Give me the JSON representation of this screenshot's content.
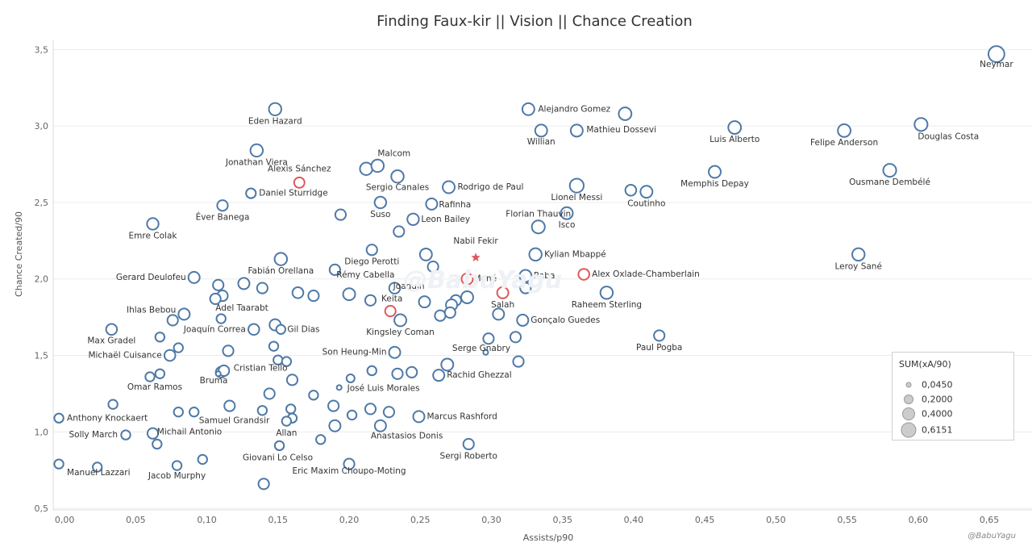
{
  "chart_data": {
    "type": "scatter",
    "title": "Finding Faux-kir || Vision || Chance Creation",
    "xlabel": "Assists/p90",
    "ylabel": "Chance Created/90",
    "xlim": [
      -0.008,
      0.68
    ],
    "ylim": [
      0.49,
      3.56
    ],
    "x_ticks": [
      "0,00",
      "0,05",
      "0,10",
      "0,15",
      "0,20",
      "0,25",
      "0,30",
      "0,35",
      "0,40",
      "0,45",
      "0,50",
      "0,55",
      "0,60",
      "0,65"
    ],
    "y_ticks": [
      "0,5",
      "1,0",
      "1,5",
      "2,0",
      "2,5",
      "3,0",
      "3,5"
    ],
    "grid": true,
    "legend": {
      "title": "SUM(xA/90)",
      "placement": "bottom-right",
      "entries": [
        "0,0450",
        "0,2000",
        "0,4000",
        "0,6151"
      ]
    },
    "colors": {
      "default": "#4e79a7",
      "highlight": "#e15759"
    },
    "points": [
      {
        "x": 0.655,
        "y": 3.47,
        "xa": 0.6,
        "label": "Neymar"
      },
      {
        "x": 0.148,
        "y": 3.11,
        "xa": 0.28,
        "label": "Eden Hazard"
      },
      {
        "x": 0.326,
        "y": 3.11,
        "xa": 0.25,
        "label": "Alejandro Gomez"
      },
      {
        "x": 0.394,
        "y": 3.08,
        "xa": 0.3,
        "label": ""
      },
      {
        "x": 0.335,
        "y": 2.97,
        "xa": 0.25,
        "label": "Willian"
      },
      {
        "x": 0.36,
        "y": 2.97,
        "xa": 0.25,
        "label": "Mathieu Dossevi"
      },
      {
        "x": 0.471,
        "y": 2.99,
        "xa": 0.3,
        "label": "Luis Alberto"
      },
      {
        "x": 0.548,
        "y": 2.97,
        "xa": 0.3,
        "label": "Felipe Anderson"
      },
      {
        "x": 0.602,
        "y": 3.01,
        "xa": 0.32,
        "label": "Douglas Costa"
      },
      {
        "x": 0.135,
        "y": 2.84,
        "xa": 0.28,
        "label": "Jonathan Viera"
      },
      {
        "x": 0.212,
        "y": 2.72,
        "xa": 0.28,
        "label": ""
      },
      {
        "x": 0.22,
        "y": 2.74,
        "xa": 0.28,
        "label": "Malcom"
      },
      {
        "x": 0.165,
        "y": 2.63,
        "xa": 0.15,
        "label": "Alexis Sánchez",
        "highlight": true
      },
      {
        "x": 0.234,
        "y": 2.67,
        "xa": 0.28,
        "label": "Sergio Canales"
      },
      {
        "x": 0.27,
        "y": 2.6,
        "xa": 0.25,
        "label": "Rodrigo de Paul"
      },
      {
        "x": 0.36,
        "y": 2.61,
        "xa": 0.4,
        "label": "Lionel Messi"
      },
      {
        "x": 0.398,
        "y": 2.58,
        "xa": 0.18,
        "label": ""
      },
      {
        "x": 0.409,
        "y": 2.57,
        "xa": 0.25,
        "label": "Coutinho"
      },
      {
        "x": 0.457,
        "y": 2.7,
        "xa": 0.25,
        "label": "Memphis Depay"
      },
      {
        "x": 0.58,
        "y": 2.71,
        "xa": 0.32,
        "label": "Ousmane Dembélé"
      },
      {
        "x": 0.131,
        "y": 2.56,
        "xa": 0.12,
        "label": "Daniel Sturridge"
      },
      {
        "x": 0.111,
        "y": 2.48,
        "xa": 0.16,
        "label": "Éver Banega"
      },
      {
        "x": 0.222,
        "y": 2.5,
        "xa": 0.22,
        "label": "Suso"
      },
      {
        "x": 0.258,
        "y": 2.49,
        "xa": 0.2,
        "label": "Rafinha"
      },
      {
        "x": 0.194,
        "y": 2.42,
        "xa": 0.16,
        "label": ""
      },
      {
        "x": 0.245,
        "y": 2.39,
        "xa": 0.22,
        "label": "Leon Bailey"
      },
      {
        "x": 0.353,
        "y": 2.43,
        "xa": 0.25,
        "label": "Isco"
      },
      {
        "x": 0.235,
        "y": 2.31,
        "xa": 0.16,
        "label": ""
      },
      {
        "x": 0.062,
        "y": 2.36,
        "xa": 0.22,
        "label": "Emre Colak"
      },
      {
        "x": 0.333,
        "y": 2.34,
        "xa": 0.32,
        "label": "Florian Thauvin"
      },
      {
        "x": 0.558,
        "y": 2.16,
        "xa": 0.28,
        "label": "Leroy Sané"
      },
      {
        "x": 0.289,
        "y": 2.14,
        "xa": 0.0,
        "label": "Nabil Fekir",
        "highlight": true,
        "marker": "star"
      },
      {
        "x": 0.152,
        "y": 2.13,
        "xa": 0.28,
        "label": "Fabián Orellana"
      },
      {
        "x": 0.216,
        "y": 2.19,
        "xa": 0.16,
        "label": "Diego Perotti"
      },
      {
        "x": 0.254,
        "y": 2.16,
        "xa": 0.25,
        "label": ""
      },
      {
        "x": 0.331,
        "y": 2.16,
        "xa": 0.28,
        "label": "Kylian Mbappé"
      },
      {
        "x": 0.259,
        "y": 2.08,
        "xa": 0.16,
        "label": ""
      },
      {
        "x": 0.19,
        "y": 2.06,
        "xa": 0.16,
        "label": ""
      },
      {
        "x": 0.365,
        "y": 2.03,
        "xa": 0.18,
        "label": "Alex Oxlade-Chamberlain",
        "highlight": true
      },
      {
        "x": 0.091,
        "y": 2.01,
        "xa": 0.2,
        "label": "Gerard Deulofeu"
      },
      {
        "x": 0.283,
        "y": 2.0,
        "xa": 0.2,
        "label": "Mané",
        "highlight": true
      },
      {
        "x": 0.324,
        "y": 2.02,
        "xa": 0.25,
        "label": "Raba"
      },
      {
        "x": 0.126,
        "y": 1.97,
        "xa": 0.2,
        "label": ""
      },
      {
        "x": 0.108,
        "y": 1.96,
        "xa": 0.16,
        "label": ""
      },
      {
        "x": 0.139,
        "y": 1.94,
        "xa": 0.16,
        "label": ""
      },
      {
        "x": 0.324,
        "y": 1.94,
        "xa": 0.16,
        "label": ""
      },
      {
        "x": 0.232,
        "y": 1.94,
        "xa": 0.18,
        "label": "Rémy Cabella"
      },
      {
        "x": 0.164,
        "y": 1.91,
        "xa": 0.18,
        "label": ""
      },
      {
        "x": 0.175,
        "y": 1.89,
        "xa": 0.16,
        "label": ""
      },
      {
        "x": 0.2,
        "y": 1.9,
        "xa": 0.25,
        "label": ""
      },
      {
        "x": 0.308,
        "y": 1.91,
        "xa": 0.2,
        "label": "Salah",
        "highlight": true
      },
      {
        "x": 0.381,
        "y": 1.91,
        "xa": 0.28,
        "label": "Raheem Sterling"
      },
      {
        "x": 0.111,
        "y": 1.89,
        "xa": 0.16,
        "label": ""
      },
      {
        "x": 0.106,
        "y": 1.87,
        "xa": 0.16,
        "label": ""
      },
      {
        "x": 0.215,
        "y": 1.86,
        "xa": 0.16,
        "label": ""
      },
      {
        "x": 0.253,
        "y": 1.85,
        "xa": 0.2,
        "label": "Joaquín"
      },
      {
        "x": 0.275,
        "y": 1.86,
        "xa": 0.16,
        "label": ""
      },
      {
        "x": 0.283,
        "y": 1.88,
        "xa": 0.25,
        "label": ""
      },
      {
        "x": 0.272,
        "y": 1.83,
        "xa": 0.2,
        "label": ""
      },
      {
        "x": 0.229,
        "y": 1.79,
        "xa": 0.16,
        "label": "Keita",
        "highlight": true
      },
      {
        "x": 0.084,
        "y": 1.77,
        "xa": 0.2,
        "label": "Ihlas Bebou"
      },
      {
        "x": 0.076,
        "y": 1.73,
        "xa": 0.16,
        "label": ""
      },
      {
        "x": 0.11,
        "y": 1.74,
        "xa": 0.09,
        "label": "Adel Taarabt"
      },
      {
        "x": 0.236,
        "y": 1.73,
        "xa": 0.25,
        "label": "Kingsley Coman"
      },
      {
        "x": 0.264,
        "y": 1.76,
        "xa": 0.16,
        "label": ""
      },
      {
        "x": 0.271,
        "y": 1.78,
        "xa": 0.16,
        "label": ""
      },
      {
        "x": 0.305,
        "y": 1.77,
        "xa": 0.2,
        "label": ""
      },
      {
        "x": 0.322,
        "y": 1.73,
        "xa": 0.2,
        "label": "Gonçalo Guedes"
      },
      {
        "x": 0.148,
        "y": 1.7,
        "xa": 0.2,
        "label": ""
      },
      {
        "x": 0.152,
        "y": 1.67,
        "xa": 0.09,
        "label": "Gil Dias"
      },
      {
        "x": 0.033,
        "y": 1.67,
        "xa": 0.18,
        "label": "Max Gradel"
      },
      {
        "x": 0.133,
        "y": 1.67,
        "xa": 0.18,
        "label": "Joaquín Correa"
      },
      {
        "x": 0.067,
        "y": 1.62,
        "xa": 0.09,
        "label": ""
      },
      {
        "x": 0.298,
        "y": 1.61,
        "xa": 0.16,
        "label": ""
      },
      {
        "x": 0.317,
        "y": 1.62,
        "xa": 0.16,
        "label": ""
      },
      {
        "x": 0.418,
        "y": 1.63,
        "xa": 0.16,
        "label": "Paul Pogba"
      },
      {
        "x": 0.147,
        "y": 1.56,
        "xa": 0.09,
        "label": ""
      },
      {
        "x": 0.08,
        "y": 1.55,
        "xa": 0.09,
        "label": ""
      },
      {
        "x": 0.115,
        "y": 1.53,
        "xa": 0.16,
        "label": ""
      },
      {
        "x": 0.232,
        "y": 1.52,
        "xa": 0.2,
        "label": "Son Heung-Min"
      },
      {
        "x": 0.296,
        "y": 1.52,
        "xa": 0.0,
        "label": "Serge Gnabry"
      },
      {
        "x": 0.074,
        "y": 1.5,
        "xa": 0.18,
        "label": "Michaël Cuisance"
      },
      {
        "x": 0.15,
        "y": 1.47,
        "xa": 0.09,
        "label": ""
      },
      {
        "x": 0.156,
        "y": 1.46,
        "xa": 0.09,
        "label": ""
      },
      {
        "x": 0.269,
        "y": 1.44,
        "xa": 0.25,
        "label": ""
      },
      {
        "x": 0.319,
        "y": 1.46,
        "xa": 0.16,
        "label": ""
      },
      {
        "x": 0.11,
        "y": 1.39,
        "xa": 0.16,
        "label": ""
      },
      {
        "x": 0.112,
        "y": 1.4,
        "xa": 0.16,
        "label": "Cristian Tello"
      },
      {
        "x": 0.067,
        "y": 1.38,
        "xa": 0.09,
        "label": ""
      },
      {
        "x": 0.06,
        "y": 1.36,
        "xa": 0.09,
        "label": "Omar Ramos"
      },
      {
        "x": 0.216,
        "y": 1.4,
        "xa": 0.09,
        "label": ""
      },
      {
        "x": 0.234,
        "y": 1.38,
        "xa": 0.16,
        "label": ""
      },
      {
        "x": 0.244,
        "y": 1.39,
        "xa": 0.16,
        "label": ""
      },
      {
        "x": 0.263,
        "y": 1.37,
        "xa": 0.2,
        "label": "Rachid Ghezzal"
      },
      {
        "x": 0.108,
        "y": 1.38,
        "xa": 0.0,
        "label": "Bruma"
      },
      {
        "x": 0.16,
        "y": 1.34,
        "xa": 0.16,
        "label": ""
      },
      {
        "x": 0.201,
        "y": 1.35,
        "xa": 0.05,
        "label": ""
      },
      {
        "x": 0.193,
        "y": 1.29,
        "xa": 0.0,
        "label": "José Luis Morales"
      },
      {
        "x": 0.144,
        "y": 1.25,
        "xa": 0.16,
        "label": ""
      },
      {
        "x": 0.175,
        "y": 1.24,
        "xa": 0.09,
        "label": ""
      },
      {
        "x": 0.034,
        "y": 1.18,
        "xa": 0.09,
        "label": ""
      },
      {
        "x": 0.116,
        "y": 1.17,
        "xa": 0.16,
        "label": ""
      },
      {
        "x": 0.189,
        "y": 1.17,
        "xa": 0.16,
        "label": ""
      },
      {
        "x": 0.159,
        "y": 1.15,
        "xa": 0.09,
        "label": ""
      },
      {
        "x": 0.139,
        "y": 1.14,
        "xa": 0.09,
        "label": ""
      },
      {
        "x": 0.08,
        "y": 1.13,
        "xa": 0.09,
        "label": ""
      },
      {
        "x": 0.091,
        "y": 1.13,
        "xa": 0.09,
        "label": "Samuel Grandsir"
      },
      {
        "x": 0.215,
        "y": 1.15,
        "xa": 0.16,
        "label": ""
      },
      {
        "x": 0.228,
        "y": 1.13,
        "xa": 0.16,
        "label": ""
      },
      {
        "x": 0.202,
        "y": 1.11,
        "xa": 0.09,
        "label": ""
      },
      {
        "x": 0.249,
        "y": 1.1,
        "xa": 0.2,
        "label": "Marcus Rashford"
      },
      {
        "x": -0.004,
        "y": 1.09,
        "xa": 0.09,
        "label": "Anthony Knockaert"
      },
      {
        "x": 0.16,
        "y": 1.09,
        "xa": 0.09,
        "label": ""
      },
      {
        "x": 0.156,
        "y": 1.07,
        "xa": 0.09,
        "label": "Allan"
      },
      {
        "x": 0.19,
        "y": 1.04,
        "xa": 0.2,
        "label": ""
      },
      {
        "x": 0.222,
        "y": 1.04,
        "xa": 0.2,
        "label": "Anastasios Donis"
      },
      {
        "x": 0.043,
        "y": 0.98,
        "xa": 0.09,
        "label": "Solly March"
      },
      {
        "x": 0.062,
        "y": 0.99,
        "xa": 0.16,
        "label": ""
      },
      {
        "x": 0.065,
        "y": 0.92,
        "xa": 0.09,
        "label": "Michail Antonio"
      },
      {
        "x": 0.18,
        "y": 0.95,
        "xa": 0.09,
        "label": ""
      },
      {
        "x": 0.151,
        "y": 0.91,
        "xa": 0.09,
        "label": "Giovani Lo Celso"
      },
      {
        "x": 0.284,
        "y": 0.92,
        "xa": 0.16,
        "label": "Sergi Roberto"
      },
      {
        "x": 0.097,
        "y": 0.82,
        "xa": 0.09,
        "label": ""
      },
      {
        "x": -0.004,
        "y": 0.79,
        "xa": 0.09,
        "label": "Manuel Lazzari"
      },
      {
        "x": 0.023,
        "y": 0.77,
        "xa": 0.09,
        "label": ""
      },
      {
        "x": 0.079,
        "y": 0.78,
        "xa": 0.09,
        "label": "Jacob Murphy"
      },
      {
        "x": 0.2,
        "y": 0.79,
        "xa": 0.16,
        "label": "Eric Maxim Choupo-Moting"
      },
      {
        "x": 0.14,
        "y": 0.66,
        "xa": 0.16,
        "label": ""
      }
    ]
  },
  "watermark": "@BabuYagu",
  "credit": "@BabuYagu"
}
